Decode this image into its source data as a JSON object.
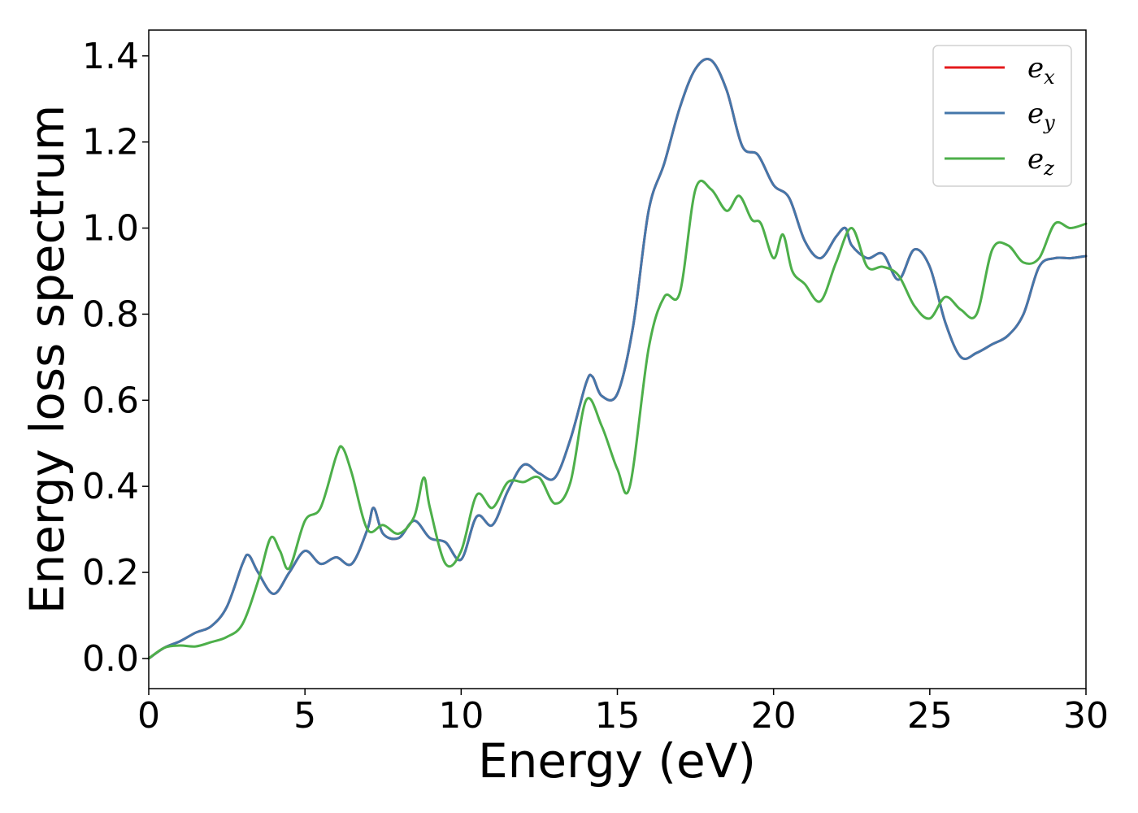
{
  "chart_data": {
    "type": "line",
    "xlabel": "Energy (eV)",
    "ylabel": "Energy loss spectrum",
    "xlim": [
      0,
      30
    ],
    "ylim": [
      -0.07,
      1.46
    ],
    "xticks": [
      0,
      5,
      10,
      15,
      20,
      25,
      30
    ],
    "yticks": [
      0.0,
      0.2,
      0.4,
      0.6,
      0.8,
      1.0,
      1.2,
      1.4
    ],
    "xtick_labels": [
      "0",
      "5",
      "10",
      "15",
      "20",
      "25",
      "30"
    ],
    "ytick_labels": [
      "0.0",
      "0.2",
      "0.4",
      "0.6",
      "0.8",
      "1.0",
      "1.2",
      "1.4"
    ],
    "grid": false,
    "legend_position": "top-right",
    "series": [
      {
        "name": "e_x",
        "label_base": "e",
        "label_sub": "x",
        "color": "#e41a1c",
        "x": [
          0,
          0.5,
          1.0,
          1.5,
          2.0,
          2.5,
          3.0,
          3.2,
          3.5,
          4.0,
          4.5,
          5.0,
          5.5,
          6.0,
          6.5,
          7.0,
          7.2,
          7.5,
          8.0,
          8.5,
          9.0,
          9.5,
          10.0,
          10.5,
          11.0,
          11.5,
          12.0,
          12.5,
          13.0,
          13.5,
          14.0,
          14.2,
          14.5,
          15.0,
          15.5,
          16.0,
          16.5,
          17.0,
          17.5,
          18.0,
          18.5,
          19.0,
          19.5,
          20.0,
          20.5,
          21.0,
          21.5,
          22.0,
          22.3,
          22.5,
          23.0,
          23.5,
          24.0,
          24.5,
          25.0,
          25.5,
          26.0,
          26.5,
          27.0,
          27.5,
          28.0,
          28.5,
          29.0,
          29.5,
          30.0
        ],
        "values": [
          0.0,
          0.025,
          0.04,
          0.06,
          0.075,
          0.12,
          0.22,
          0.24,
          0.2,
          0.15,
          0.2,
          0.25,
          0.22,
          0.235,
          0.22,
          0.3,
          0.35,
          0.29,
          0.28,
          0.32,
          0.28,
          0.27,
          0.23,
          0.33,
          0.31,
          0.39,
          0.45,
          0.43,
          0.42,
          0.51,
          0.64,
          0.655,
          0.61,
          0.615,
          0.77,
          1.04,
          1.15,
          1.28,
          1.37,
          1.39,
          1.32,
          1.19,
          1.17,
          1.1,
          1.07,
          0.97,
          0.93,
          0.98,
          1.0,
          0.96,
          0.93,
          0.94,
          0.88,
          0.95,
          0.91,
          0.78,
          0.7,
          0.71,
          0.73,
          0.75,
          0.8,
          0.91,
          0.93,
          0.93,
          0.935
        ]
      },
      {
        "name": "e_y",
        "label_base": "e",
        "label_sub": "y",
        "color": "#4477aa",
        "x": [
          0,
          0.5,
          1.0,
          1.5,
          2.0,
          2.5,
          3.0,
          3.2,
          3.5,
          4.0,
          4.5,
          5.0,
          5.5,
          6.0,
          6.5,
          7.0,
          7.2,
          7.5,
          8.0,
          8.5,
          9.0,
          9.5,
          10.0,
          10.5,
          11.0,
          11.5,
          12.0,
          12.5,
          13.0,
          13.5,
          14.0,
          14.2,
          14.5,
          15.0,
          15.5,
          16.0,
          16.5,
          17.0,
          17.5,
          18.0,
          18.5,
          19.0,
          19.5,
          20.0,
          20.5,
          21.0,
          21.5,
          22.0,
          22.3,
          22.5,
          23.0,
          23.5,
          24.0,
          24.5,
          25.0,
          25.5,
          26.0,
          26.5,
          27.0,
          27.5,
          28.0,
          28.5,
          29.0,
          29.5,
          30.0
        ],
        "values": [
          0.0,
          0.025,
          0.04,
          0.06,
          0.075,
          0.12,
          0.22,
          0.24,
          0.2,
          0.15,
          0.2,
          0.25,
          0.22,
          0.235,
          0.22,
          0.3,
          0.35,
          0.29,
          0.28,
          0.32,
          0.28,
          0.27,
          0.23,
          0.33,
          0.31,
          0.39,
          0.45,
          0.43,
          0.42,
          0.51,
          0.64,
          0.655,
          0.61,
          0.615,
          0.77,
          1.04,
          1.15,
          1.28,
          1.37,
          1.39,
          1.32,
          1.19,
          1.17,
          1.1,
          1.07,
          0.97,
          0.93,
          0.98,
          1.0,
          0.96,
          0.93,
          0.94,
          0.88,
          0.95,
          0.91,
          0.78,
          0.7,
          0.71,
          0.73,
          0.75,
          0.8,
          0.91,
          0.93,
          0.93,
          0.935
        ]
      },
      {
        "name": "e_z",
        "label_base": "e",
        "label_sub": "z",
        "color": "#4daf4a",
        "x": [
          0,
          0.5,
          1.0,
          1.5,
          2.0,
          2.5,
          3.0,
          3.5,
          3.9,
          4.2,
          4.5,
          5.0,
          5.5,
          6.0,
          6.2,
          6.5,
          7.0,
          7.5,
          8.0,
          8.5,
          8.8,
          9.0,
          9.5,
          10.0,
          10.5,
          11.0,
          11.5,
          12.0,
          12.5,
          13.0,
          13.5,
          14.0,
          14.5,
          15.0,
          15.4,
          16.0,
          16.5,
          17.0,
          17.5,
          18.0,
          18.5,
          18.9,
          19.3,
          19.6,
          20.0,
          20.3,
          20.6,
          21.0,
          21.5,
          22.0,
          22.5,
          23.0,
          23.5,
          24.0,
          24.5,
          25.0,
          25.5,
          26.0,
          26.5,
          27.0,
          27.5,
          28.0,
          28.5,
          29.0,
          29.5,
          30.0
        ],
        "values": [
          0.0,
          0.025,
          0.03,
          0.028,
          0.038,
          0.05,
          0.08,
          0.18,
          0.28,
          0.25,
          0.21,
          0.32,
          0.35,
          0.47,
          0.49,
          0.43,
          0.3,
          0.31,
          0.29,
          0.33,
          0.42,
          0.35,
          0.22,
          0.25,
          0.38,
          0.35,
          0.41,
          0.41,
          0.42,
          0.36,
          0.41,
          0.6,
          0.54,
          0.44,
          0.4,
          0.72,
          0.84,
          0.85,
          1.09,
          1.09,
          1.04,
          1.075,
          1.02,
          1.01,
          0.93,
          0.985,
          0.9,
          0.87,
          0.83,
          0.92,
          1.0,
          0.91,
          0.91,
          0.89,
          0.82,
          0.79,
          0.84,
          0.81,
          0.8,
          0.95,
          0.96,
          0.92,
          0.93,
          1.01,
          1.0,
          1.01
        ]
      }
    ]
  }
}
